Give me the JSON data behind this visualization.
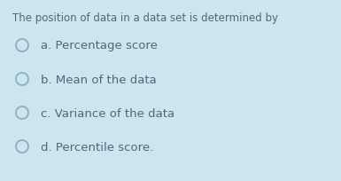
{
  "background_color": "#cce5ee",
  "question": "The position of data in a data set is determined by",
  "options": [
    "a. Percentage score",
    "b. Mean of the data",
    "c. Variance of the data",
    "d. Percentile score."
  ],
  "question_fontsize": 8.5,
  "option_fontsize": 9.5,
  "text_color": "#4a6a7a",
  "circle_edgecolor": "#8ab0c0",
  "circle_fill_color": "#cce5ee",
  "fig_width": 3.85,
  "fig_height": 2.05,
  "dpi": 100
}
